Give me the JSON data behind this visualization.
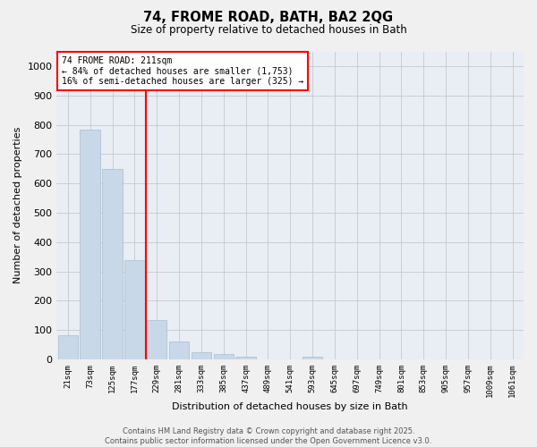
{
  "title_line1": "74, FROME ROAD, BATH, BA2 2QG",
  "title_line2": "Size of property relative to detached houses in Bath",
  "xlabel": "Distribution of detached houses by size in Bath",
  "ylabel": "Number of detached properties",
  "bar_color": "#c8d8e8",
  "bar_edge_color": "#a8bece",
  "background_color": "#e8eef4",
  "fig_color": "#f0f0f0",
  "grid_color": "#c8c8d0",
  "annotation_line_color": "red",
  "annotation_text_line1": "74 FROME ROAD: 211sqm",
  "annotation_text_line2": "← 84% of detached houses are smaller (1,753)",
  "annotation_text_line3": "16% of semi-detached houses are larger (325) →",
  "categories": [
    "21sqm",
    "73sqm",
    "125sqm",
    "177sqm",
    "229sqm",
    "281sqm",
    "333sqm",
    "385sqm",
    "437sqm",
    "489sqm",
    "541sqm",
    "593sqm",
    "645sqm",
    "697sqm",
    "749sqm",
    "801sqm",
    "853sqm",
    "905sqm",
    "957sqm",
    "1009sqm",
    "1061sqm"
  ],
  "values": [
    83,
    783,
    648,
    337,
    135,
    60,
    23,
    17,
    9,
    0,
    0,
    8,
    0,
    0,
    0,
    0,
    0,
    0,
    0,
    0,
    0
  ],
  "ylim": [
    0,
    1050
  ],
  "yticks": [
    0,
    100,
    200,
    300,
    400,
    500,
    600,
    700,
    800,
    900,
    1000
  ],
  "footer_line1": "Contains HM Land Registry data © Crown copyright and database right 2025.",
  "footer_line2": "Contains public sector information licensed under the Open Government Licence v3.0."
}
